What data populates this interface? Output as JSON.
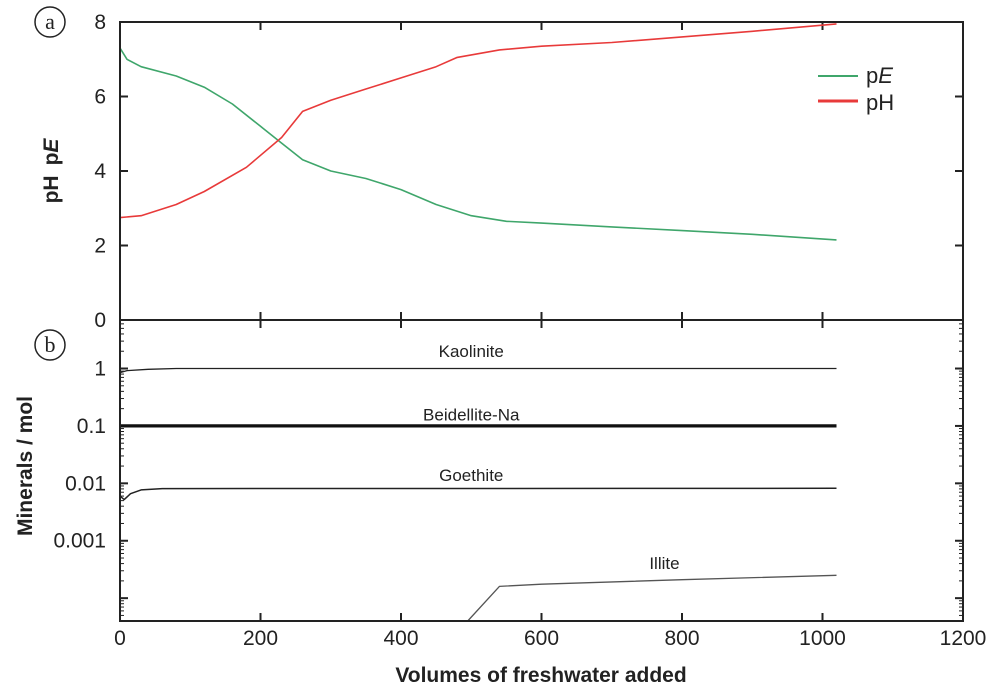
{
  "chart_data": [
    {
      "panel": "a",
      "type": "line",
      "ylabel_parts": [
        "pH",
        "p",
        "E"
      ],
      "ylim": [
        0,
        8
      ],
      "yticks": [
        0,
        2,
        4,
        6,
        8
      ],
      "xlim": [
        0,
        1200
      ],
      "legend_position": "top-right",
      "series": [
        {
          "name_parts": [
            "p",
            "E"
          ],
          "color": "#3fa66b",
          "points": [
            [
              0,
              7.3
            ],
            [
              10,
              7.0
            ],
            [
              30,
              6.8
            ],
            [
              80,
              6.55
            ],
            [
              120,
              6.25
            ],
            [
              160,
              5.8
            ],
            [
              200,
              5.2
            ],
            [
              230,
              4.75
            ],
            [
              260,
              4.3
            ],
            [
              300,
              4.0
            ],
            [
              350,
              3.8
            ],
            [
              400,
              3.5
            ],
            [
              450,
              3.1
            ],
            [
              500,
              2.8
            ],
            [
              550,
              2.65
            ],
            [
              600,
              2.6
            ],
            [
              700,
              2.5
            ],
            [
              800,
              2.4
            ],
            [
              900,
              2.3
            ],
            [
              1020,
              2.15
            ]
          ]
        },
        {
          "name_parts": [
            "pH",
            ""
          ],
          "color": "#e83a3a",
          "points": [
            [
              0,
              2.75
            ],
            [
              30,
              2.8
            ],
            [
              80,
              3.1
            ],
            [
              120,
              3.45
            ],
            [
              180,
              4.1
            ],
            [
              230,
              4.9
            ],
            [
              260,
              5.6
            ],
            [
              300,
              5.9
            ],
            [
              350,
              6.2
            ],
            [
              400,
              6.5
            ],
            [
              450,
              6.8
            ],
            [
              480,
              7.05
            ],
            [
              540,
              7.25
            ],
            [
              600,
              7.35
            ],
            [
              700,
              7.45
            ],
            [
              800,
              7.6
            ],
            [
              900,
              7.75
            ],
            [
              1020,
              7.95
            ]
          ]
        }
      ]
    },
    {
      "panel": "b",
      "type": "line",
      "scale": "log",
      "ylabel": "Minerals / mol",
      "xlabel": "Volumes of freshwater added",
      "xlim": [
        0,
        1200
      ],
      "xticks": [
        0,
        200,
        400,
        600,
        800,
        1000,
        1200
      ],
      "ylim": [
        4e-05,
        7
      ],
      "yticks": [
        0.001,
        0.01,
        0.1,
        1
      ],
      "ytick_labels": [
        "0.001",
        "0.01",
        "0.1",
        "1"
      ],
      "series": [
        {
          "name": "Kaolinite",
          "color": "#222222",
          "label_at": [
            500,
            1.6
          ],
          "points": [
            [
              0,
              0.85
            ],
            [
              10,
              0.92
            ],
            [
              40,
              0.97
            ],
            [
              80,
              1.0
            ],
            [
              1020,
              1.0
            ]
          ]
        },
        {
          "name": "Beidellite-Na",
          "color": "#111111",
          "label_at": [
            500,
            0.125
          ],
          "points": [
            [
              0,
              0.1
            ],
            [
              1020,
              0.1
            ]
          ]
        },
        {
          "name": "Goethite",
          "color": "#222222",
          "label_at": [
            500,
            0.011
          ],
          "points": [
            [
              0,
              0.006
            ],
            [
              6,
              0.0052
            ],
            [
              15,
              0.0066
            ],
            [
              30,
              0.0077
            ],
            [
              60,
              0.0081
            ],
            [
              1020,
              0.0082
            ]
          ]
        },
        {
          "name": "Illite",
          "color": "#555555",
          "label_at": [
            775,
            0.00032
          ],
          "points": [
            [
              495,
              4e-05
            ],
            [
              540,
              0.00016
            ],
            [
              600,
              0.000175
            ],
            [
              800,
              0.00021
            ],
            [
              1020,
              0.00025
            ]
          ]
        }
      ]
    }
  ]
}
